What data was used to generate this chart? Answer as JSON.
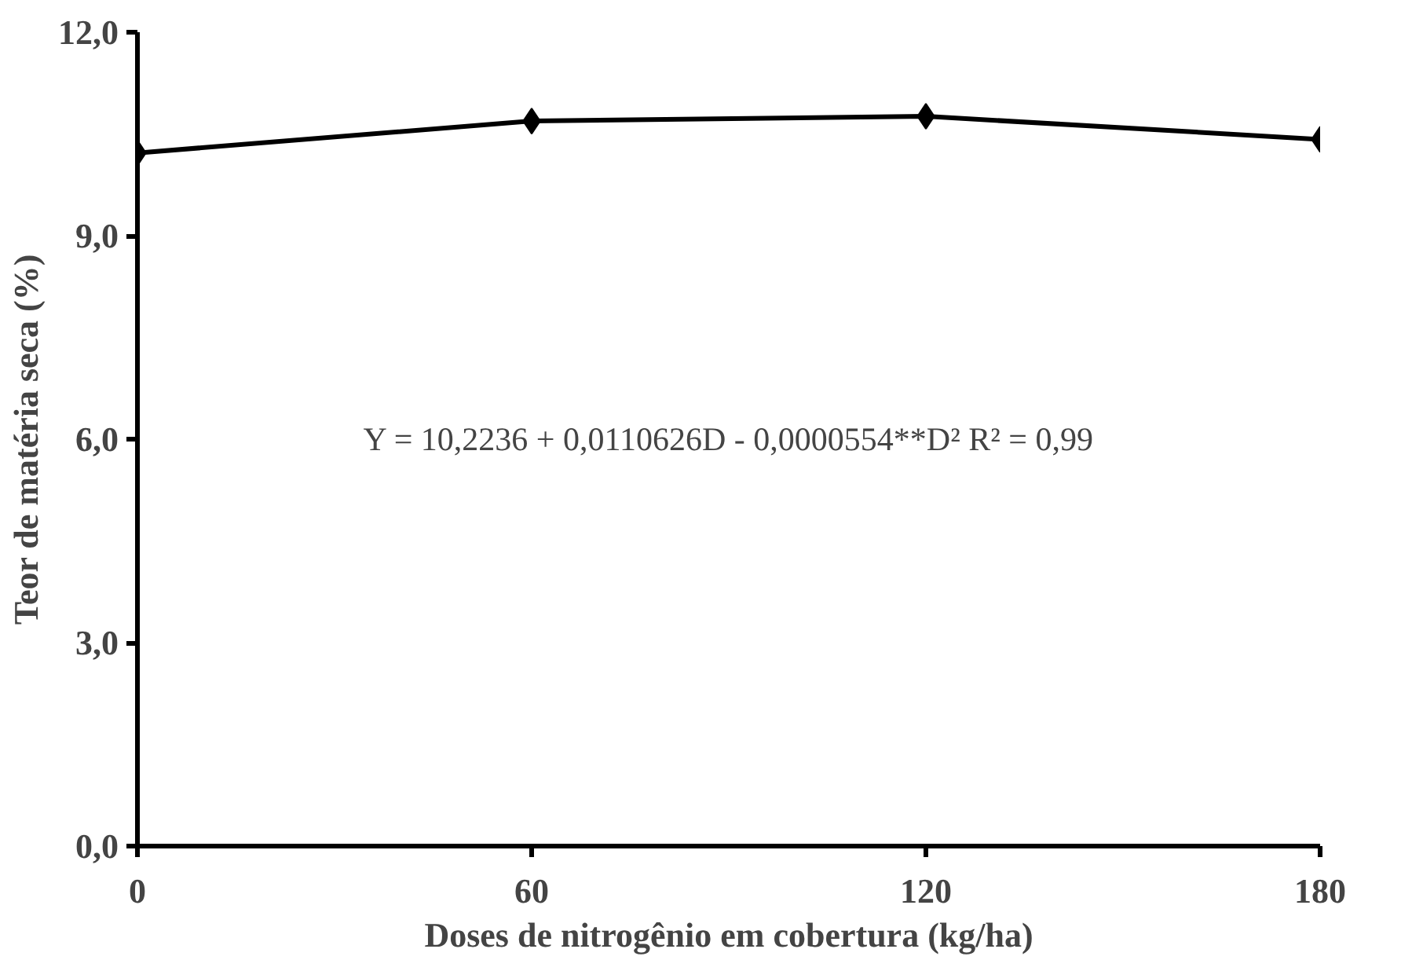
{
  "chart_data": {
    "type": "line",
    "xlabel": "Doses de nitrogênio em cobertura (kg/ha)",
    "ylabel": "Teor de matéria seca (%)",
    "x": [
      0,
      60,
      120,
      180
    ],
    "series": [
      {
        "color": "#000000",
        "values": [
          10.22,
          10.69,
          10.76,
          10.42
        ]
      }
    ],
    "xlim": [
      0,
      180
    ],
    "xticks": [
      0,
      60,
      120,
      180
    ],
    "ylim": [
      0,
      12
    ],
    "yticks": [
      {
        "value": 0,
        "label": "0,0"
      },
      {
        "value": 3,
        "label": "3,0"
      },
      {
        "value": 6,
        "label": "6,0"
      },
      {
        "value": 9,
        "label": "9,0"
      },
      {
        "value": 12,
        "label": "12,0"
      }
    ],
    "annotations": [
      "Y = 10,2236 + 0,0110626D - 0,0000554**D² R² = 0,99"
    ],
    "grid": false,
    "marker": "diamond",
    "line_style": "solid"
  }
}
